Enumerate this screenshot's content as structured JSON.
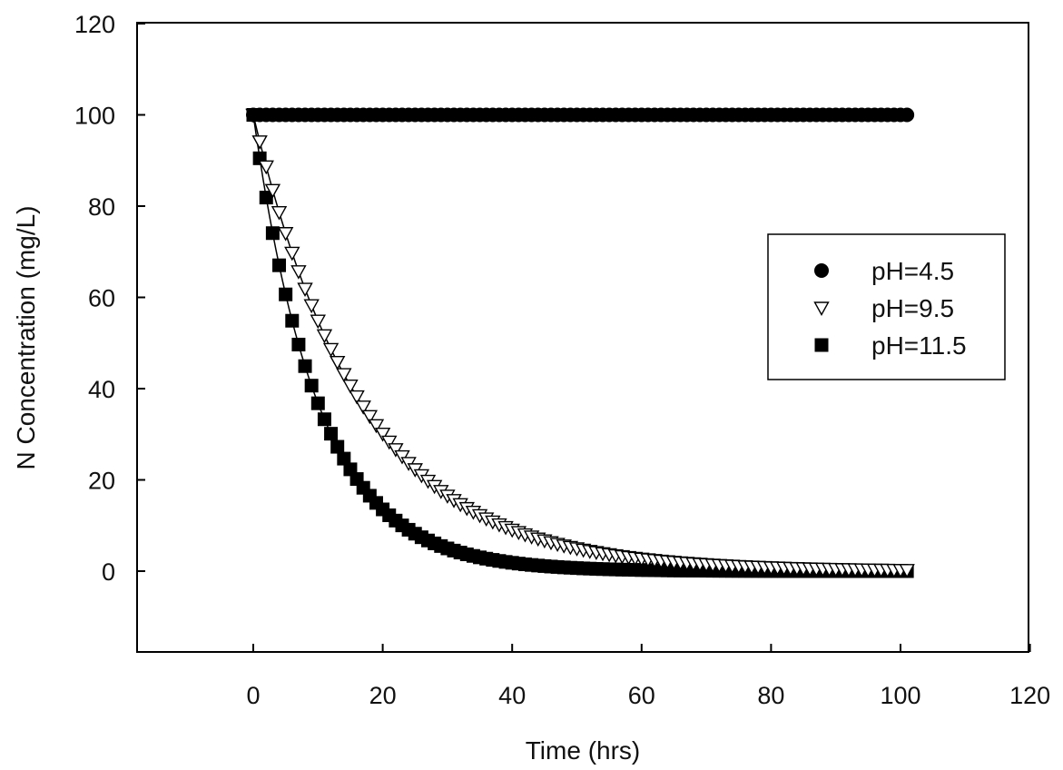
{
  "chart_data": {
    "type": "scatter",
    "xlabel": "Time (hrs)",
    "ylabel": "N Concentration (mg/L)",
    "xlim": [
      -20,
      120
    ],
    "ylim": [
      -20,
      120
    ],
    "x_ticks": [
      0,
      20,
      40,
      60,
      80,
      100,
      120
    ],
    "y_ticks": [
      0,
      20,
      40,
      60,
      80,
      100,
      120
    ],
    "x_tick_labels": [
      "0",
      "20",
      "40",
      "60",
      "80",
      "100",
      "120"
    ],
    "y_tick_labels": [
      "0",
      "20",
      "40",
      "60",
      "80",
      "100",
      "120"
    ],
    "grid": false,
    "legend_position": "right",
    "series": [
      {
        "name": "pH=4.5",
        "marker": "circle-filled",
        "color": "#000000",
        "x_start": 0,
        "x_end": 101,
        "x_step": 1,
        "model": "constant",
        "c0": 100
      },
      {
        "name": "pH=9.5",
        "marker": "triangle-down-open",
        "color": "#000000",
        "x_start": 0,
        "x_end": 101,
        "x_step": 1,
        "model": "exponential-decay",
        "c0": 100,
        "k": 0.06,
        "fit_line": true
      },
      {
        "name": "pH=11.5",
        "marker": "square-filled",
        "color": "#000000",
        "x_start": 0,
        "x_end": 101,
        "x_step": 1,
        "model": "exponential-decay",
        "c0": 100,
        "k": 0.1,
        "fit_line": true
      }
    ]
  }
}
